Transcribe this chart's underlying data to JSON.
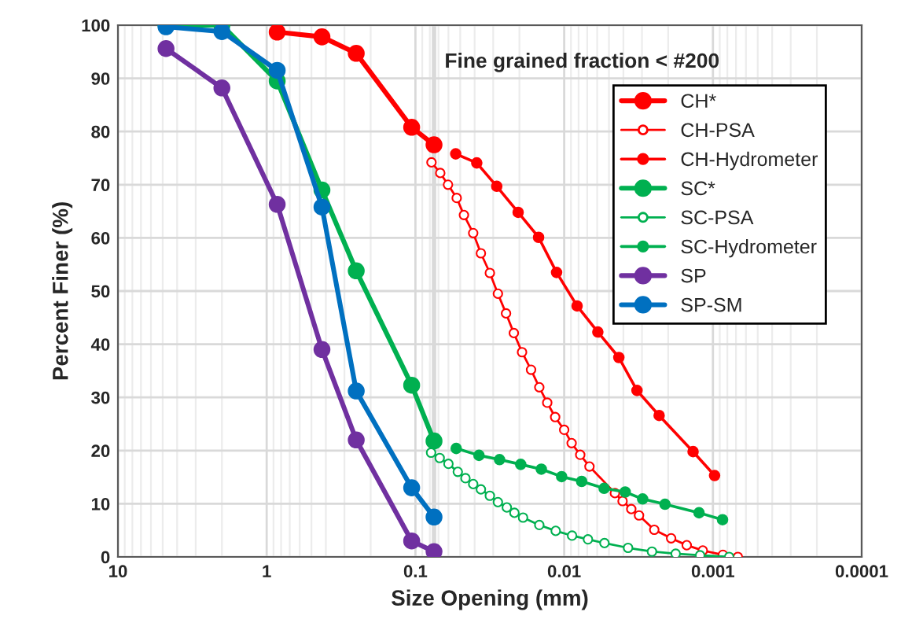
{
  "chart_data": {
    "type": "line",
    "xlabel": "Size Opening (mm)",
    "ylabel": "Percent Finer (%)",
    "log": "x",
    "xlim": [
      10,
      0.0001
    ],
    "xticks": [
      10,
      1,
      0.1,
      0.01,
      0.001,
      0.0001
    ],
    "ylim": [
      0,
      100
    ],
    "yticks": [
      0,
      10,
      20,
      30,
      40,
      50,
      60,
      70,
      80,
      90,
      100
    ],
    "grid": true,
    "legend": "top right",
    "marker": "circle",
    "line_style": "solid",
    "ref_lines": [
      {
        "axis": "x",
        "value": 0.075,
        "label": "Fine grained fraction < #200",
        "color": "#d9d9d9"
      }
    ],
    "series": [
      {
        "name": "CH*",
        "color": "#ff0000",
        "marker": "circle",
        "x": [
          0.85,
          0.425,
          0.25,
          0.106,
          0.075
        ],
        "values": [
          98.7,
          97.8,
          94.7,
          80.8,
          77.5
        ]
      },
      {
        "name": "CH-PSA",
        "color": "#ff0000",
        "marker": "open circle",
        "x": [
          0.078,
          0.0681,
          0.0604,
          0.0528,
          0.0472,
          0.0409,
          0.0363,
          0.0316,
          0.0279,
          0.0246,
          0.0218,
          0.0192,
          0.0167,
          0.0147,
          0.013,
          0.0115,
          0.01,
          0.00891,
          0.0078,
          0.00676,
          0.00519,
          0.00456,
          0.00405,
          0.00354,
          0.00314,
          0.00248,
          0.00191,
          0.0015,
          0.00117,
          0.000857,
          0.00068
        ],
        "values": [
          74.2,
          72.2,
          70.0,
          67.5,
          64.3,
          60.9,
          57.1,
          53.4,
          49.5,
          45.8,
          42.1,
          38.5,
          35.2,
          31.9,
          29.0,
          26.3,
          23.9,
          21.4,
          19.2,
          17.0,
          null,
          12.0,
          10.5,
          9.0,
          7.8,
          5.1,
          3.5,
          2.2,
          1.2,
          0.4,
          0
        ]
      },
      {
        "name": "CH-Hydrometer",
        "color": "#ff0000",
        "marker": "small circle",
        "x": [
          0.0536,
          0.0387,
          0.0284,
          0.0204,
          0.01486,
          0.01125,
          0.00819,
          0.00594,
          0.00429,
          0.00324,
          0.0023,
          0.00136,
          0.000975
        ],
        "values": [
          75.8,
          74.1,
          69.7,
          64.8,
          60.1,
          53.5,
          47.2,
          42.3,
          37.5,
          31.3,
          26.6,
          19.8,
          15.3
        ]
      },
      {
        "name": "SC*",
        "color": "#00b050",
        "marker": "circle",
        "x": [
          4.75,
          2.0,
          0.85,
          0.425,
          0.25,
          0.106,
          0.075
        ],
        "values": [
          100,
          100,
          89.5,
          69,
          53.8,
          32.3,
          21.8
        ]
      },
      {
        "name": "SC-PSA",
        "color": "#00b050",
        "marker": "open circle",
        "x": [
          0.0785,
          0.0687,
          0.06,
          0.0519,
          0.0461,
          0.0409,
          0.0363,
          0.0316,
          0.0279,
          0.0243,
          0.0216,
          0.0189,
          0.0147,
          0.0114,
          0.00885,
          0.00692,
          0.00536,
          0.00372,
          0.00257,
          0.00178,
          0.00122,
          0.000778
        ],
        "values": [
          19.6,
          18.6,
          17.5,
          16.0,
          14.8,
          13.7,
          12.7,
          11.5,
          10.3,
          9.3,
          8.3,
          7.4,
          6.0,
          4.9,
          4.0,
          3.3,
          2.6,
          1.7,
          1.0,
          0.6,
          0.3,
          0
        ]
      },
      {
        "name": "SC-Hydrometer",
        "color": "#00b050",
        "marker": "small circle",
        "x": [
          0.0532,
          0.0374,
          0.0272,
          0.0196,
          0.01425,
          0.0104,
          0.00763,
          0.00539,
          0.00389,
          0.00297,
          0.0021,
          0.00124,
          0.000862
        ],
        "values": [
          20.4,
          19.1,
          18.3,
          17.4,
          16.5,
          15.1,
          14.2,
          12.9,
          12.2,
          10.9,
          9.9,
          8.3,
          7.0
        ]
      },
      {
        "name": "SP",
        "color": "#7030a0",
        "marker": "circle",
        "x": [
          4.75,
          2.0,
          0.85,
          0.425,
          0.25,
          0.106,
          0.075
        ],
        "values": [
          95.6,
          88.2,
          66.3,
          39,
          22,
          3,
          1
        ]
      },
      {
        "name": "SP-SM",
        "color": "#0070c0",
        "marker": "circle",
        "x": [
          4.75,
          2.0,
          0.85,
          0.425,
          0.25,
          0.106,
          0.075
        ],
        "values": [
          99.7,
          98.8,
          91.5,
          65.8,
          31.2,
          13,
          7.5
        ]
      }
    ]
  }
}
